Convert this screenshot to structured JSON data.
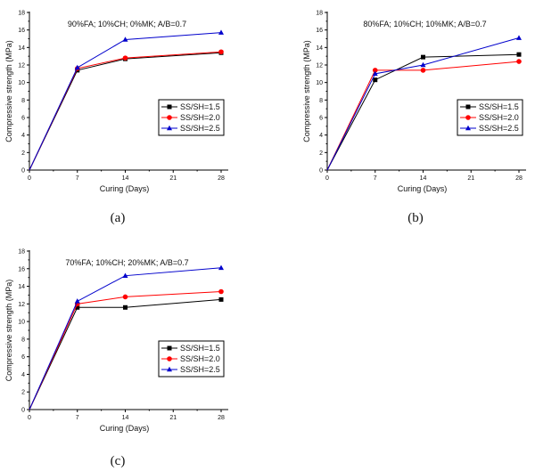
{
  "chart_data": [
    {
      "type": "line",
      "panel": "(a)",
      "title": "90%FA; 10%CH; 0%MK; A/B=0.7",
      "xlabel": "Curing (Days)",
      "ylabel": "Compressive strength (MPa)",
      "x": [
        0,
        7,
        14,
        28
      ],
      "xticks": [
        "0",
        "7",
        "14",
        "21",
        "28"
      ],
      "yticks": [
        "0",
        "2",
        "4",
        "6",
        "8",
        "10",
        "12",
        "14",
        "16",
        "18"
      ],
      "xlim": [
        0,
        28
      ],
      "ylim": [
        0,
        18
      ],
      "legend": "right",
      "series": [
        {
          "name": "SS/SH=1.5",
          "color": "#000000",
          "marker": "square",
          "values": [
            0,
            11.4,
            12.7,
            13.4
          ]
        },
        {
          "name": "SS/SH=2.0",
          "color": "#ff0000",
          "marker": "circle",
          "values": [
            0,
            11.6,
            12.8,
            13.5
          ]
        },
        {
          "name": "SS/SH=2.5",
          "color": "#0000cc",
          "marker": "triangle",
          "values": [
            0,
            11.7,
            14.9,
            15.7
          ]
        }
      ]
    },
    {
      "type": "line",
      "panel": "(b)",
      "title": "80%FA; 10%CH; 10%MK; A/B=0.7",
      "xlabel": "Curing (Days)",
      "ylabel": "Compressive strength (MPa)",
      "x": [
        0,
        7,
        14,
        28
      ],
      "xticks": [
        "0",
        "7",
        "14",
        "21",
        "28"
      ],
      "yticks": [
        "0",
        "2",
        "4",
        "6",
        "8",
        "10",
        "12",
        "14",
        "16",
        "18"
      ],
      "xlim": [
        0,
        28
      ],
      "ylim": [
        0,
        18
      ],
      "legend": "right",
      "series": [
        {
          "name": "SS/SH=1.5",
          "color": "#000000",
          "marker": "square",
          "values": [
            0,
            10.3,
            12.9,
            13.2
          ]
        },
        {
          "name": "SS/SH=2.0",
          "color": "#ff0000",
          "marker": "circle",
          "values": [
            0,
            11.4,
            11.4,
            12.4
          ]
        },
        {
          "name": "SS/SH=2.5",
          "color": "#0000cc",
          "marker": "triangle",
          "values": [
            0,
            11.0,
            12.0,
            15.1
          ]
        }
      ]
    },
    {
      "type": "line",
      "panel": "(c)",
      "title": "70%FA; 10%CH; 20%MK; A/B=0.7",
      "xlabel": "Curing (Days)",
      "ylabel": "Compressive strength (MPa)",
      "x": [
        0,
        7,
        14,
        28
      ],
      "xticks": [
        "0",
        "7",
        "14",
        "21",
        "28"
      ],
      "yticks": [
        "0",
        "2",
        "4",
        "6",
        "8",
        "10",
        "12",
        "14",
        "16",
        "18"
      ],
      "xlim": [
        0,
        28
      ],
      "ylim": [
        0,
        18
      ],
      "legend": "right",
      "series": [
        {
          "name": "SS/SH=1.5",
          "color": "#000000",
          "marker": "square",
          "values": [
            0,
            11.6,
            11.6,
            12.5
          ]
        },
        {
          "name": "SS/SH=2.0",
          "color": "#ff0000",
          "marker": "circle",
          "values": [
            0,
            12.0,
            12.8,
            13.4
          ]
        },
        {
          "name": "SS/SH=2.5",
          "color": "#0000cc",
          "marker": "triangle",
          "values": [
            0,
            12.3,
            15.2,
            16.1
          ]
        }
      ]
    }
  ]
}
